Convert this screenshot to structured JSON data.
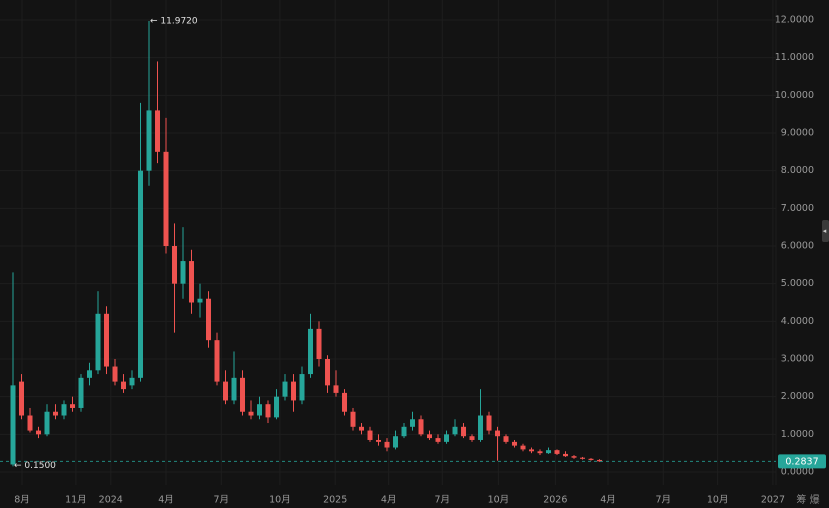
{
  "chart_data": {
    "type": "candlestick",
    "colors": {
      "up": "#26a69a",
      "down": "#ef5350"
    },
    "ylim": [
      0,
      12
    ],
    "yticks": [
      {
        "value": 0,
        "label": "0.0000"
      },
      {
        "value": 1,
        "label": "1.0000"
      },
      {
        "value": 2,
        "label": "2.0000"
      },
      {
        "value": 3,
        "label": "3.0000"
      },
      {
        "value": 4,
        "label": "4.0000"
      },
      {
        "value": 5,
        "label": "5.0000"
      },
      {
        "value": 6,
        "label": "6.0000"
      },
      {
        "value": 7,
        "label": "7.0000"
      },
      {
        "value": 8,
        "label": "8.0000"
      },
      {
        "value": 9,
        "label": "9.0000"
      },
      {
        "value": 10,
        "label": "10.0000"
      },
      {
        "value": 11,
        "label": "11.0000"
      },
      {
        "value": 12,
        "label": "12.0000"
      }
    ],
    "xlim": [
      -1.53,
      89.41
    ],
    "xticks": [
      {
        "value": 1.06,
        "label": "8月"
      },
      {
        "value": 7.4,
        "label": "11月"
      },
      {
        "value": 11.5,
        "label": "2024"
      },
      {
        "value": 18,
        "label": "4月"
      },
      {
        "value": 24.5,
        "label": "7月"
      },
      {
        "value": 31.4,
        "label": "10月"
      },
      {
        "value": 37.9,
        "label": "2025"
      },
      {
        "value": 44.2,
        "label": "4月"
      },
      {
        "value": 50.5,
        "label": "7月"
      },
      {
        "value": 57.1,
        "label": "10月"
      },
      {
        "value": 63.8,
        "label": "2026"
      },
      {
        "value": 70,
        "label": "4月"
      },
      {
        "value": 76.5,
        "label": "7月"
      },
      {
        "value": 82.9,
        "label": "10月"
      },
      {
        "value": 89.4,
        "label": "2027"
      }
    ],
    "grid": true,
    "ohlc": [
      [
        0.2,
        5.3,
        0.15,
        2.3
      ],
      [
        2.4,
        2.6,
        1.4,
        1.5
      ],
      [
        1.5,
        1.7,
        1.05,
        1.1
      ],
      [
        1.1,
        1.2,
        0.9,
        1.0
      ],
      [
        1.0,
        1.8,
        0.95,
        1.6
      ],
      [
        1.6,
        1.8,
        1.4,
        1.5
      ],
      [
        1.5,
        1.9,
        1.4,
        1.8
      ],
      [
        1.8,
        2.0,
        1.6,
        1.7
      ],
      [
        1.7,
        2.6,
        1.6,
        2.5
      ],
      [
        2.5,
        2.9,
        2.3,
        2.7
      ],
      [
        2.7,
        4.8,
        2.6,
        4.2
      ],
      [
        4.2,
        4.4,
        2.6,
        2.8
      ],
      [
        2.8,
        3.0,
        2.3,
        2.4
      ],
      [
        2.4,
        2.6,
        2.1,
        2.2
      ],
      [
        2.3,
        2.7,
        2.2,
        2.5
      ],
      [
        2.5,
        9.8,
        2.4,
        8.0
      ],
      [
        8.0,
        11.972,
        7.6,
        9.6
      ],
      [
        9.6,
        10.9,
        8.2,
        8.5
      ],
      [
        8.5,
        9.4,
        5.8,
        6.0
      ],
      [
        6.0,
        6.6,
        3.7,
        5.0
      ],
      [
        5.0,
        6.5,
        4.6,
        5.6
      ],
      [
        5.6,
        5.9,
        4.2,
        4.5
      ],
      [
        4.5,
        5.0,
        4.1,
        4.6
      ],
      [
        4.6,
        4.8,
        3.3,
        3.5
      ],
      [
        3.5,
        3.7,
        2.3,
        2.4
      ],
      [
        2.4,
        2.7,
        1.8,
        1.9
      ],
      [
        1.9,
        3.2,
        1.8,
        2.5
      ],
      [
        2.5,
        2.7,
        1.5,
        1.6
      ],
      [
        1.6,
        1.9,
        1.4,
        1.5
      ],
      [
        1.5,
        2.0,
        1.4,
        1.8
      ],
      [
        1.8,
        1.9,
        1.3,
        1.45
      ],
      [
        1.45,
        2.2,
        1.4,
        2.0
      ],
      [
        2.0,
        2.6,
        1.9,
        2.4
      ],
      [
        2.4,
        2.6,
        1.6,
        1.9
      ],
      [
        1.9,
        2.8,
        1.8,
        2.6
      ],
      [
        2.6,
        4.2,
        2.5,
        3.8
      ],
      [
        3.8,
        4.0,
        2.8,
        3.0
      ],
      [
        3.0,
        3.1,
        2.1,
        2.3
      ],
      [
        2.3,
        2.7,
        2.0,
        2.1
      ],
      [
        2.1,
        2.2,
        1.5,
        1.6
      ],
      [
        1.6,
        1.7,
        1.1,
        1.2
      ],
      [
        1.2,
        1.3,
        1.0,
        1.1
      ],
      [
        1.1,
        1.2,
        0.8,
        0.85
      ],
      [
        0.85,
        1.0,
        0.7,
        0.8
      ],
      [
        0.8,
        0.9,
        0.55,
        0.65
      ],
      [
        0.65,
        1.1,
        0.6,
        0.95
      ],
      [
        0.95,
        1.3,
        0.9,
        1.2
      ],
      [
        1.2,
        1.6,
        1.1,
        1.4
      ],
      [
        1.4,
        1.5,
        0.95,
        1.0
      ],
      [
        1.0,
        1.1,
        0.85,
        0.9
      ],
      [
        0.9,
        1.0,
        0.75,
        0.8
      ],
      [
        0.8,
        1.1,
        0.75,
        1.0
      ],
      [
        1.0,
        1.4,
        0.95,
        1.2
      ],
      [
        1.2,
        1.3,
        0.9,
        0.95
      ],
      [
        0.95,
        1.0,
        0.8,
        0.85
      ],
      [
        0.85,
        2.2,
        0.8,
        1.5
      ],
      [
        1.5,
        1.6,
        1.0,
        1.1
      ],
      [
        1.1,
        1.2,
        0.3,
        0.95
      ],
      [
        0.95,
        1.0,
        0.75,
        0.8
      ],
      [
        0.8,
        0.85,
        0.65,
        0.7
      ],
      [
        0.7,
        0.75,
        0.55,
        0.6
      ],
      [
        0.6,
        0.65,
        0.5,
        0.55
      ],
      [
        0.55,
        0.6,
        0.45,
        0.5
      ],
      [
        0.5,
        0.65,
        0.48,
        0.58
      ],
      [
        0.58,
        0.6,
        0.45,
        0.48
      ],
      [
        0.48,
        0.55,
        0.4,
        0.42
      ],
      [
        0.42,
        0.45,
        0.35,
        0.38
      ],
      [
        0.38,
        0.4,
        0.33,
        0.35
      ],
      [
        0.35,
        0.37,
        0.3,
        0.32
      ],
      [
        0.32,
        0.34,
        0.27,
        0.2837
      ]
    ],
    "high_marker": {
      "value": 11.972,
      "label": "← 11.9720"
    },
    "low_marker": {
      "value": 0.15,
      "label": "← 0.1500"
    },
    "last_price": {
      "value": 0.2837,
      "label": "0.2837"
    },
    "corner_text": "筹 爆"
  }
}
